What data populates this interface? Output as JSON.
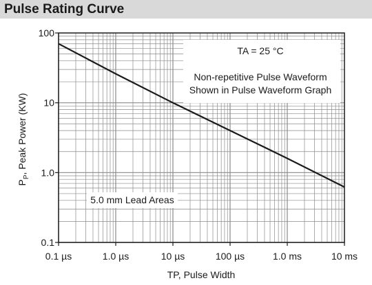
{
  "header": {
    "title": "Pulse Rating Curve"
  },
  "chart_data": {
    "type": "line",
    "title": "Pulse Rating Curve",
    "xlabel": "TP, Pulse Width",
    "ylabel": {
      "main": "P",
      "subscript": "P",
      "rest": ", Peak Power (KW)"
    },
    "xscale": "log",
    "yscale": "log",
    "xlim": [
      "0.1 µs",
      "10 ms"
    ],
    "ylim": [
      0.1,
      100
    ],
    "grid": true,
    "x_ticks": [
      "0.1 µs",
      "1.0 µs",
      "10 µs",
      "100 µs",
      "1.0 ms",
      "10 ms"
    ],
    "y_ticks": [
      "0.1",
      "1.0",
      "10",
      "100"
    ],
    "series": [
      {
        "x": [
          "0.1 µs",
          "1.0 µs",
          "10 µs",
          "100 µs",
          "1.0 ms",
          "10 ms"
        ],
        "y": [
          70,
          26,
          10,
          4.0,
          1.6,
          0.62
        ]
      }
    ],
    "annotations": {
      "temp": "TA = 25 °C",
      "note_line1": "Non-repetitive Pulse Waveform",
      "note_line2": "Shown in Pulse Waveform Graph",
      "lead": "5.0 mm Lead Areas"
    }
  }
}
